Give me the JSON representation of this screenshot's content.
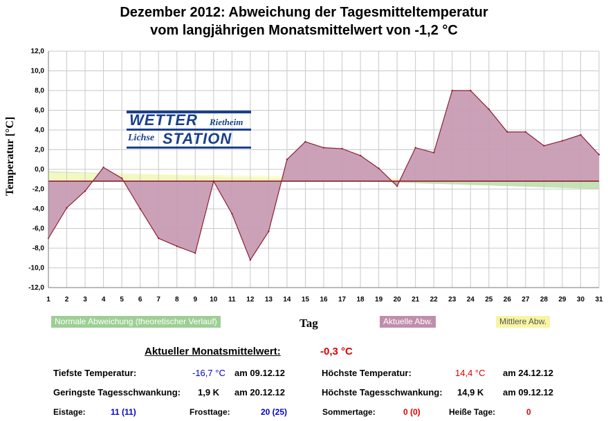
{
  "colors": {
    "actual_fill": "#C89CB4",
    "actual_line": "#8B1F2E",
    "normal_fill": "#C4E2B4",
    "mean_fill": "#FCFCC4",
    "monthly_mean_line": "#8B1F2E",
    "grid": "#C8C8C8",
    "blue": "#0000CC",
    "red": "#DD0000",
    "logo_blue": "#1A3F8C"
  },
  "title": {
    "line1": "Dezember 2012: Abweichung der Tagesmitteltemperatur",
    "line2": "vom langjährigen Monatsmittelwert von -1,2 °C"
  },
  "logo": {
    "word1": "WETTER",
    "word2": "STATION",
    "place1": "Rietheim",
    "place2": "Lichse"
  },
  "chart_data": {
    "type": "area",
    "ylabel": "Temperatur [°C]",
    "xlabel": "Tag",
    "x": [
      1,
      2,
      3,
      4,
      5,
      6,
      7,
      8,
      9,
      10,
      11,
      12,
      13,
      14,
      15,
      16,
      17,
      18,
      19,
      20,
      21,
      22,
      23,
      24,
      25,
      26,
      27,
      28,
      29,
      30,
      31
    ],
    "ylim": [
      -12,
      12
    ],
    "yticks": [
      12,
      10,
      8,
      6,
      4,
      2,
      0,
      -2,
      -4,
      -6,
      -8,
      -10,
      -12
    ],
    "ytick_labels": [
      "12,0",
      "10,0",
      "8,0",
      "6,0",
      "4,0",
      "2,0",
      "0,0",
      "-2,0",
      "-4,0",
      "-6,0",
      "-8,0",
      "-10,0",
      "-12,0"
    ],
    "xtick_labels": [
      "1",
      "2",
      "3",
      "4",
      "5",
      "6",
      "7",
      "8",
      "9",
      "10",
      "11",
      "12",
      "13",
      "14",
      "15",
      "16",
      "17",
      "18",
      "19",
      "20",
      "21",
      "22",
      "23",
      "24",
      "25",
      "26",
      "27",
      "28",
      "29",
      "30",
      "31"
    ],
    "baseline": -1.2,
    "series": [
      {
        "name": "Aktuelle Abw.",
        "values": [
          -7.0,
          -3.9,
          -2.2,
          0.2,
          -0.9,
          -4.0,
          -7.0,
          -7.8,
          -8.5,
          -1.2,
          -4.5,
          -9.2,
          -6.3,
          1.0,
          2.8,
          2.2,
          2.1,
          1.4,
          0.1,
          -1.7,
          2.2,
          1.7,
          8.0,
          8.0,
          6.1,
          3.8,
          3.8,
          2.4,
          2.9,
          3.5,
          1.5
        ]
      },
      {
        "name": "Normale Abweichung (theoretischer Verlauf)",
        "start": -0.2,
        "end": -2.0
      },
      {
        "name": "Mittlere Abw.",
        "start": -0.3,
        "end": -1.2
      }
    ],
    "legend": [
      "Normale Abweichung (theoretischer Verlauf)",
      "Aktuelle Abw.",
      "Mittlere Abw."
    ]
  },
  "stats": {
    "monthly_mean_label": "Aktueller Monatsmittelwert:",
    "monthly_mean_value": "-0,3 °C",
    "min_temp_label": "Tiefste Temperatur:",
    "min_temp_value": "-16,7 °C",
    "min_temp_date": "am 09.12.12",
    "max_temp_label": "Höchste Temperatur:",
    "max_temp_value": "14,4 °C",
    "max_temp_date": "am 24.12.12",
    "min_swing_label": "Geringste Tagesschwankung:",
    "min_swing_value": "1,9 K",
    "min_swing_date": "am 20.12.12",
    "max_swing_label": "Höchste Tagesschwankung:",
    "max_swing_value": "14,9 K",
    "max_swing_date": "am 09.12.12",
    "ice_days_label": "Eistage:",
    "ice_days_value": "11 (11)",
    "frost_days_label": "Frosttage:",
    "frost_days_value": "20 (25)",
    "summer_days_label": "Sommertage:",
    "summer_days_value": "0 (0)",
    "hot_days_label": "Heiße Tage:",
    "hot_days_value": "0"
  }
}
